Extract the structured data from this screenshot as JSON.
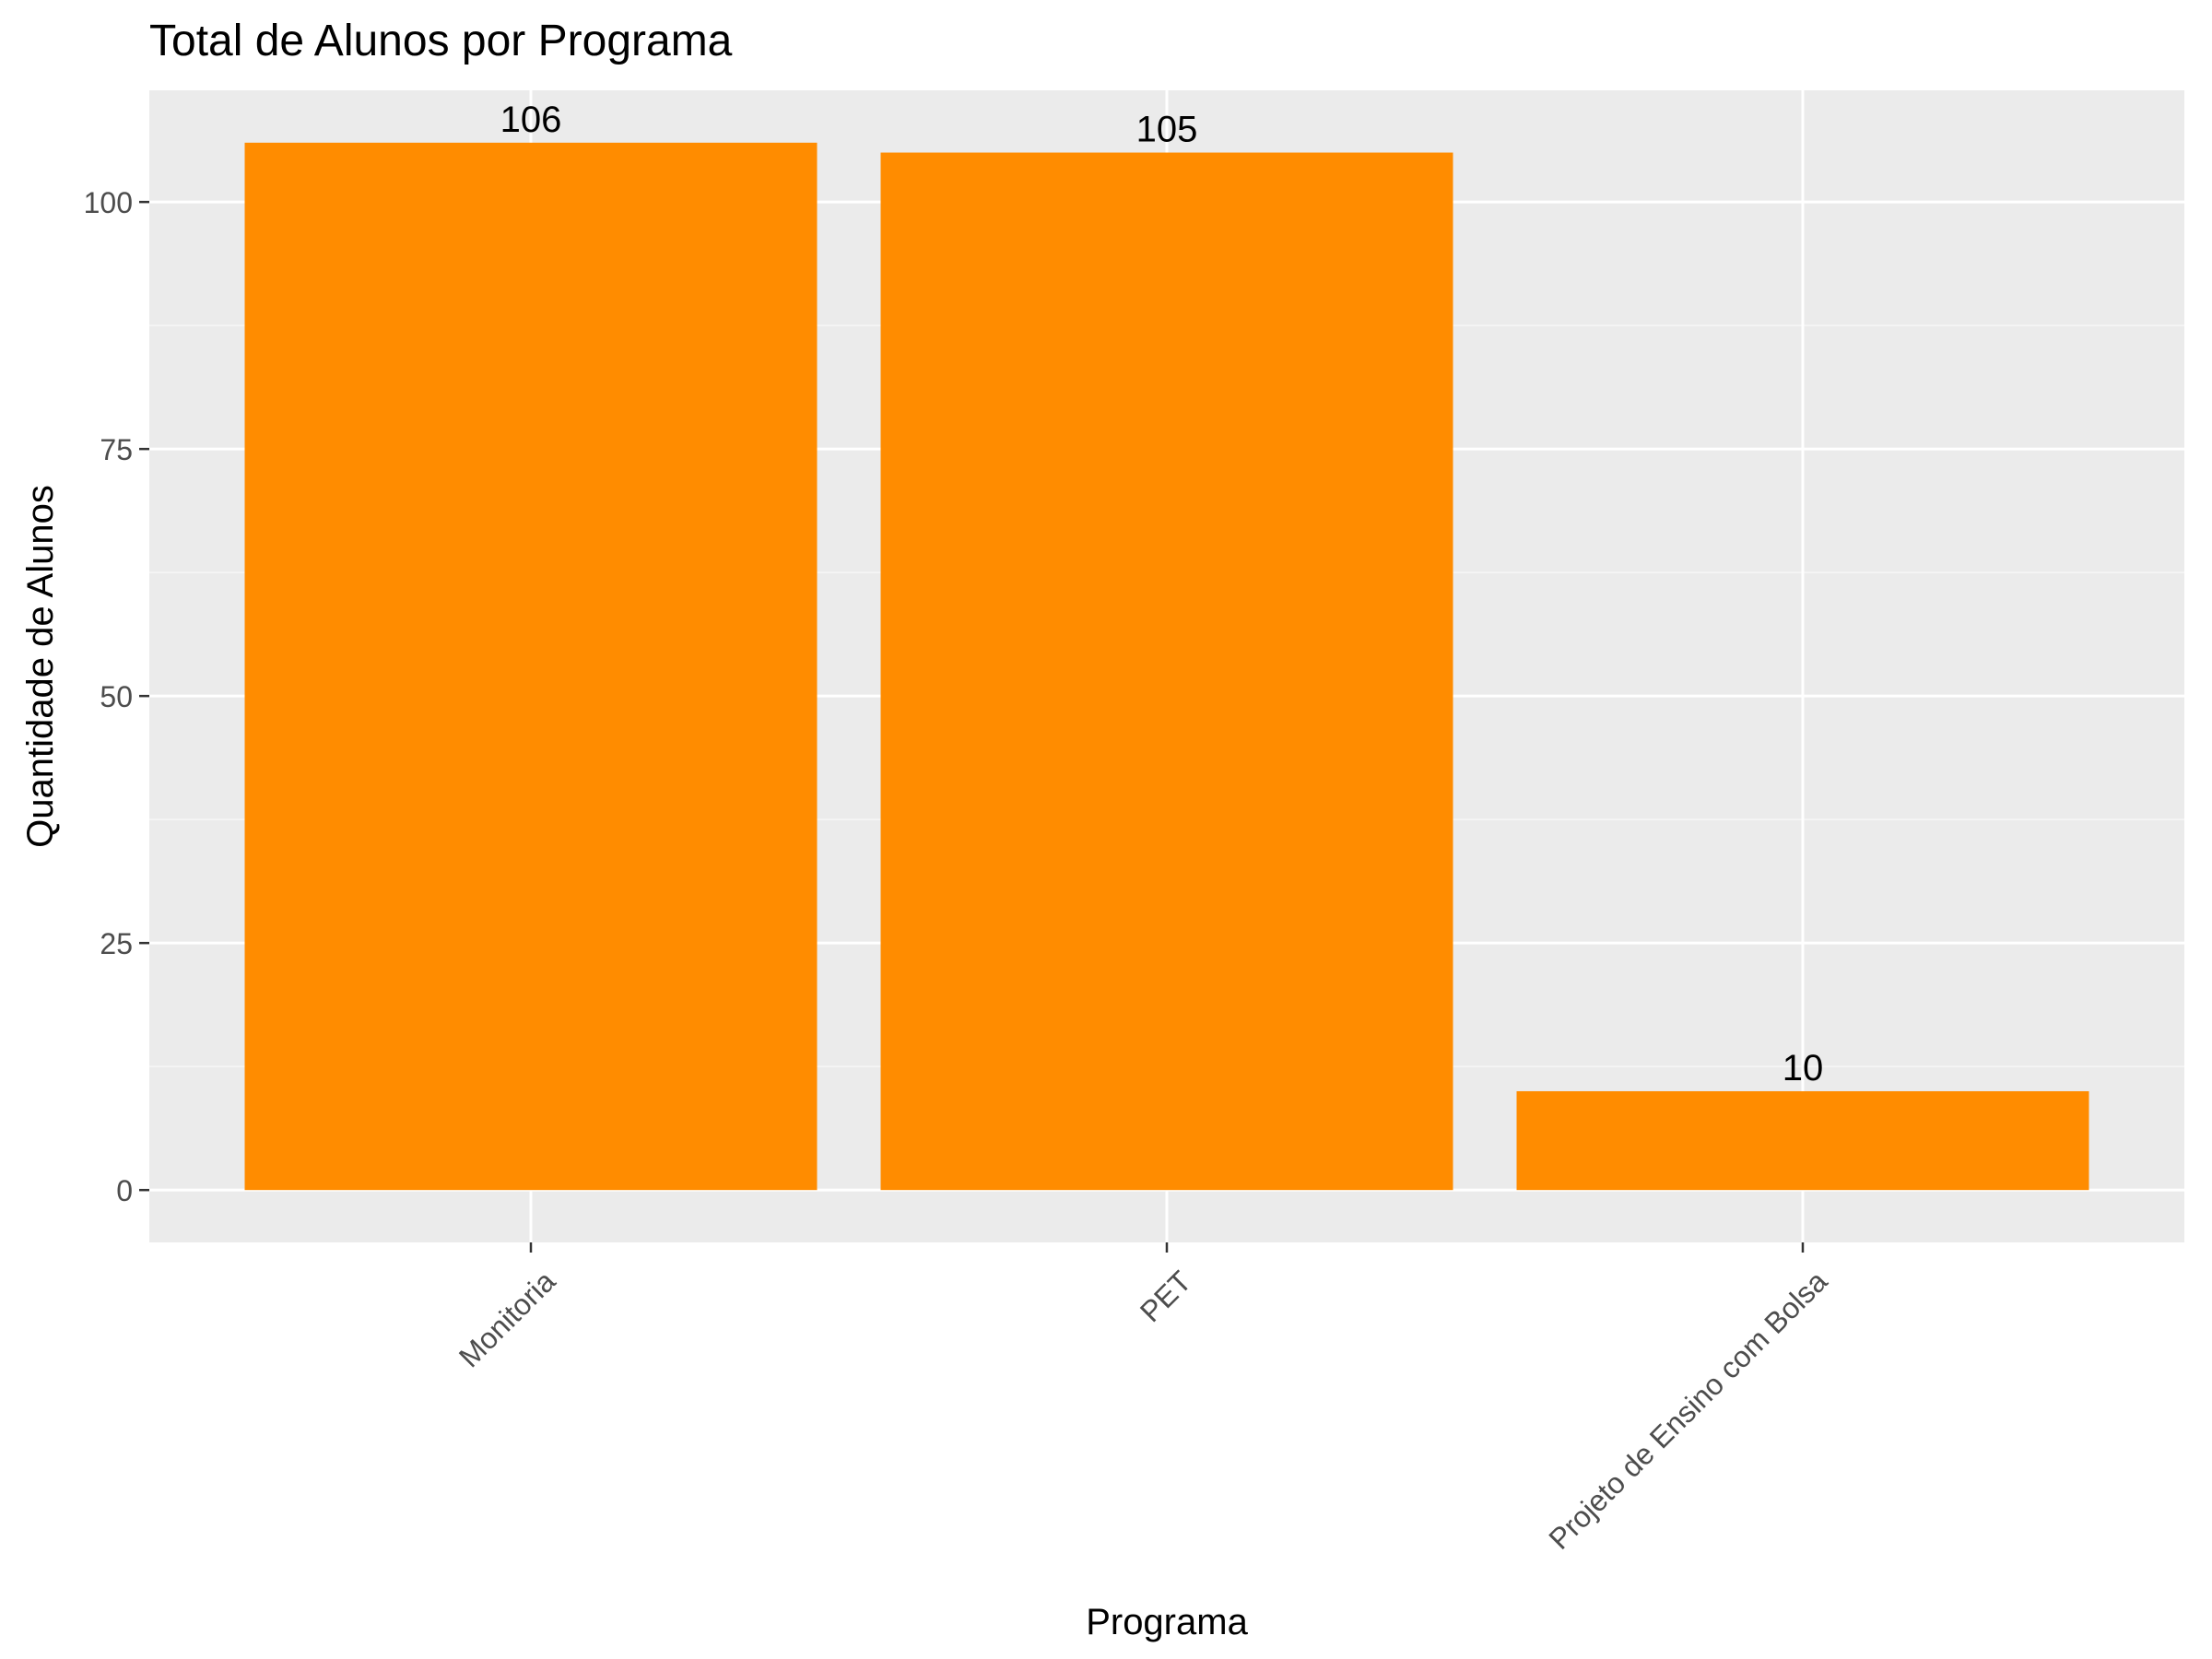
{
  "chart_data": {
    "type": "bar",
    "title": "Total de Alunos por Programa",
    "xlabel": "Programa",
    "ylabel": "Quantidade de Alunos",
    "categories": [
      "Monitoria",
      "PET",
      "Projeto de Ensino com Bolsa"
    ],
    "values": [
      106,
      105,
      10
    ],
    "data_labels": [
      "106",
      "105",
      "10"
    ],
    "ylim": [
      -5.3,
      111.3
    ],
    "yticks": [
      0,
      25,
      50,
      75,
      100
    ],
    "ytick_labels": [
      "0",
      "25",
      "50",
      "75",
      "100"
    ],
    "grid": true,
    "legend": "none",
    "x_tick_label_rotation": "45deg",
    "colors": {
      "bar": "#FF8C00",
      "panel_background": "#EBEBEB",
      "grid_major": "#FFFFFF",
      "grid_minor": "#F5F5F5",
      "tick_text": "#4D4D4D",
      "title_text": "#000000"
    }
  }
}
